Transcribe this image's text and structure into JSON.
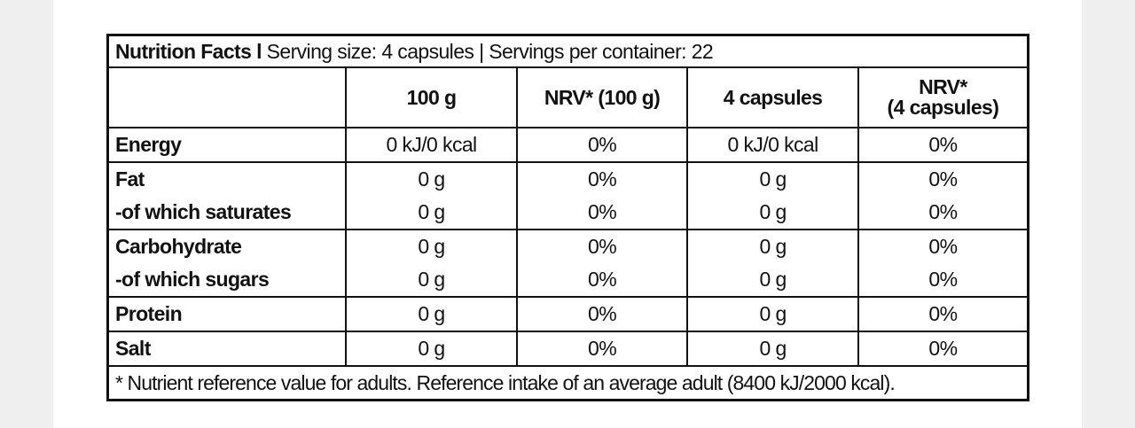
{
  "table": {
    "title_strong": "Nutrition Facts l",
    "title_rest": " Serving size: 4 capsules | Servings per container: 22",
    "headers": {
      "blank": "",
      "per100g": "100 g",
      "nrv100g": "NRV* (100 g)",
      "per4caps": "4 capsules",
      "nrv4caps_line1": "NRV*",
      "nrv4caps_line2": "(4 capsules)"
    },
    "rows": [
      {
        "name": "Energy",
        "per100g": "0 kJ/0 kcal",
        "nrv100g": "0%",
        "per4caps": "0 kJ/0 kcal",
        "nrv4caps": "0%"
      },
      {
        "name": "Fat",
        "per100g": "0 g",
        "nrv100g": "0%",
        "per4caps": "0 g",
        "nrv4caps": "0%"
      },
      {
        "name": "-of which saturates",
        "per100g": "0 g",
        "nrv100g": "0%",
        "per4caps": "0 g",
        "nrv4caps": "0%"
      },
      {
        "name": "Carbohydrate",
        "per100g": "0 g",
        "nrv100g": "0%",
        "per4caps": "0 g",
        "nrv4caps": "0%"
      },
      {
        "name": "-of which sugars",
        "per100g": "0 g",
        "nrv100g": "0%",
        "per4caps": "0 g",
        "nrv4caps": "0%"
      },
      {
        "name": "Protein",
        "per100g": "0 g",
        "nrv100g": "0%",
        "per4caps": "0 g",
        "nrv4caps": "0%"
      },
      {
        "name": "Salt",
        "per100g": "0 g",
        "nrv100g": "0%",
        "per4caps": "0 g",
        "nrv4caps": "0%"
      }
    ],
    "footnote": "* Nutrient reference value for adults. Reference intake of an average adult (8400 kJ/2000 kcal)."
  }
}
